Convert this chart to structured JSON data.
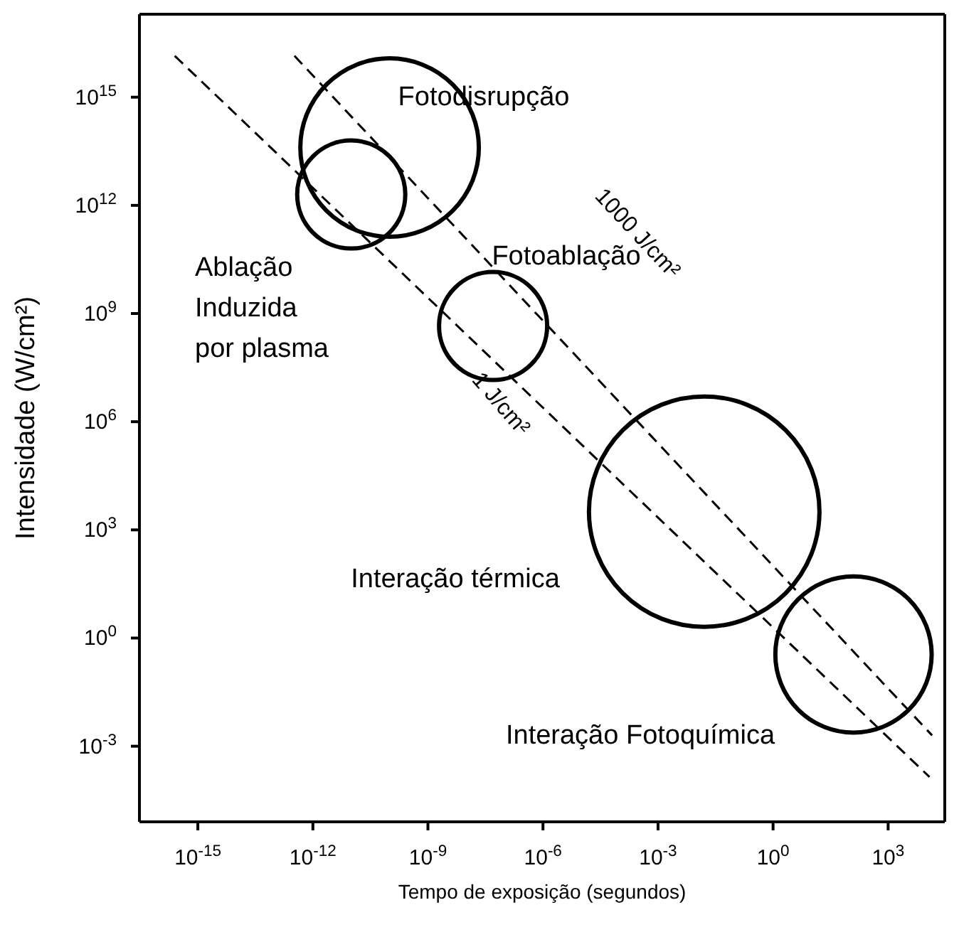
{
  "chart_data": {
    "type": "bubble",
    "xlabel": "Tempo de exposição (segundos)",
    "ylabel": "Intensidade (W/cm²)",
    "log": "xy",
    "relative": false,
    "grid": false,
    "legend": false,
    "xlim": [
      3e-17,
      30000.0
    ],
    "ylim": [
      8e-06,
      2e+17
    ],
    "xticks": [
      {
        "value": 1e-15,
        "label": "10$^{-15}$"
      },
      {
        "value": 1e-12,
        "label": "10$^{-12}$"
      },
      {
        "value": 1e-09,
        "label": "10$^{-9}$"
      },
      {
        "value": 1e-06,
        "label": "10$^{-6}$"
      },
      {
        "value": 0.001,
        "label": "10$^{-3}$"
      },
      {
        "value": 1,
        "label": "10$^{0}$"
      },
      {
        "value": 1000,
        "label": "10$^{3}$"
      }
    ],
    "yticks": [
      {
        "value": 0.001,
        "label": "10$^{-3}$"
      },
      {
        "value": 1,
        "label": "10$^{0}$"
      },
      {
        "value": 1000,
        "label": "10$^{3}$"
      },
      {
        "value": 1000000.0,
        "label": "10$^{6}$"
      },
      {
        "value": 1000000000.0,
        "label": "10$^{9}$"
      },
      {
        "value": 1000000000000.0,
        "label": "10$^{12}$"
      },
      {
        "value": 1000000000000000.0,
        "label": "10$^{15}$"
      }
    ],
    "series": [
      {
        "type": "bubble",
        "color": "#000000",
        "x": [
          1e-11,
          1e-10,
          5e-08,
          0.016,
          125
        ],
        "values": [
          2000000000000.0,
          40000000000000.0,
          450000000.0,
          3200,
          0.35
        ],
        "sizes": [
          0.22,
          0.6,
          0.22,
          1,
          0.46
        ]
      },
      {
        "type": "line",
        "color": "#000000",
        "line_style": "dashed",
        "x": [
          3.3e-13,
          14000.0
        ],
        "values": [
          1.4e+16,
          0.002
        ]
      },
      {
        "type": "line",
        "color": "#000000",
        "line_style": "dashed",
        "x": [
          2.5e-16,
          12000.0
        ],
        "values": [
          1.4e+16,
          0.00014
        ]
      }
    ],
    "annotations": [
      "Fotodisrupção",
      "Fotoablação",
      "Ablação\nInduzida\npor plasma",
      "Interação térmica",
      "Interação Fotoquímica",
      "1000 J/cm²",
      "1 J/cm²"
    ]
  }
}
